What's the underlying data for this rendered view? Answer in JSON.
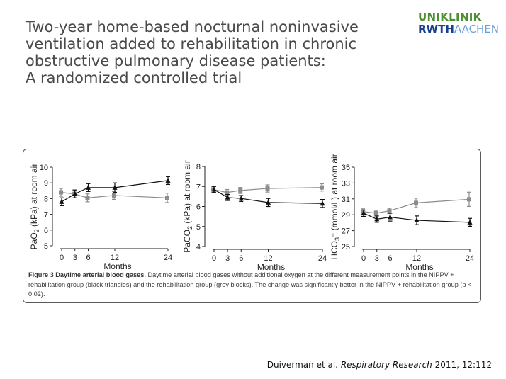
{
  "slide": {
    "title_lines": [
      "Two-year home-based nocturnal noninvasive",
      "ventilation added to rehabilitation in chronic",
      "obstructive pulmonary disease patients:",
      "A randomized controlled trial"
    ],
    "logo": {
      "line1": "UNIKLINIK",
      "line2a": "RWTH",
      "line2b": "AACHEN",
      "alt_name": "uniklinik-rwth-aachen-logo"
    },
    "caption": {
      "bold": "Figure 3 Daytime arterial blood gases.",
      "text": "Daytime arterial blood gases without additional oxygen at the different measurement points in the NIPPV + rehabilitation group (black triangles) and the rehabilitation group (grey blocks). The change was significantly better in the NIPPV + rehabilitation group (p < 0.02)."
    },
    "citation": {
      "authors": "Duiverman et al.",
      "journal": "Respiratory Research",
      "rest": "2011, 12:112"
    }
  },
  "chart_data": [
    {
      "type": "line",
      "ylabel": "PaO2 (kPa) at room air",
      "xlabel": "Months",
      "x": [
        0,
        3,
        6,
        12,
        24
      ],
      "xticks": [
        "0",
        "3",
        "6",
        "12",
        "24"
      ],
      "ylim": [
        5,
        10
      ],
      "yticks": [
        "5",
        "6",
        "7",
        "8",
        "9",
        "10"
      ],
      "grid": false,
      "series": [
        {
          "marker": "triangle",
          "color": "#111111",
          "values": [
            7.8,
            8.3,
            8.7,
            8.7,
            9.15
          ],
          "err": [
            0.25,
            0.25,
            0.25,
            0.3,
            0.25
          ]
        },
        {
          "marker": "square",
          "color": "#8c8c8c",
          "values": [
            8.4,
            8.3,
            8.05,
            8.2,
            8.05
          ],
          "err": [
            0.25,
            0.25,
            0.25,
            0.25,
            0.3
          ]
        }
      ]
    },
    {
      "type": "line",
      "ylabel": "PaCO2 (kPa) at room air",
      "xlabel": "Months",
      "x": [
        0,
        3,
        6,
        12,
        24
      ],
      "xticks": [
        "0",
        "3",
        "6",
        "12",
        "24"
      ],
      "ylim": [
        4,
        8
      ],
      "yticks": [
        "4",
        "5",
        "6",
        "7",
        "8"
      ],
      "grid": false,
      "series": [
        {
          "marker": "triangle",
          "color": "#111111",
          "values": [
            6.85,
            6.45,
            6.4,
            6.2,
            6.15
          ],
          "err": [
            0.15,
            0.15,
            0.15,
            0.2,
            0.2
          ]
        },
        {
          "marker": "square",
          "color": "#8c8c8c",
          "values": [
            6.85,
            6.7,
            6.8,
            6.9,
            6.95
          ],
          "err": [
            0.15,
            0.15,
            0.15,
            0.18,
            0.18
          ]
        }
      ]
    },
    {
      "type": "line",
      "ylabel": "HCO3- (mmol/L) at room air",
      "xlabel": "Months",
      "x": [
        0,
        3,
        6,
        12,
        24
      ],
      "xticks": [
        "0",
        "3",
        "6",
        "12",
        "24"
      ],
      "ylim": [
        25,
        35
      ],
      "yticks": [
        "25",
        "27",
        "29",
        "31",
        "33",
        "35"
      ],
      "grid": false,
      "series": [
        {
          "marker": "triangle",
          "color": "#111111",
          "values": [
            29.2,
            28.45,
            28.7,
            28.3,
            28.05
          ],
          "err": [
            0.4,
            0.4,
            0.5,
            0.55,
            0.5
          ]
        },
        {
          "marker": "square",
          "color": "#8c8c8c",
          "values": [
            29.4,
            29.2,
            29.5,
            30.5,
            30.95
          ],
          "err": [
            0.35,
            0.35,
            0.35,
            0.6,
            0.9
          ]
        }
      ]
    }
  ]
}
